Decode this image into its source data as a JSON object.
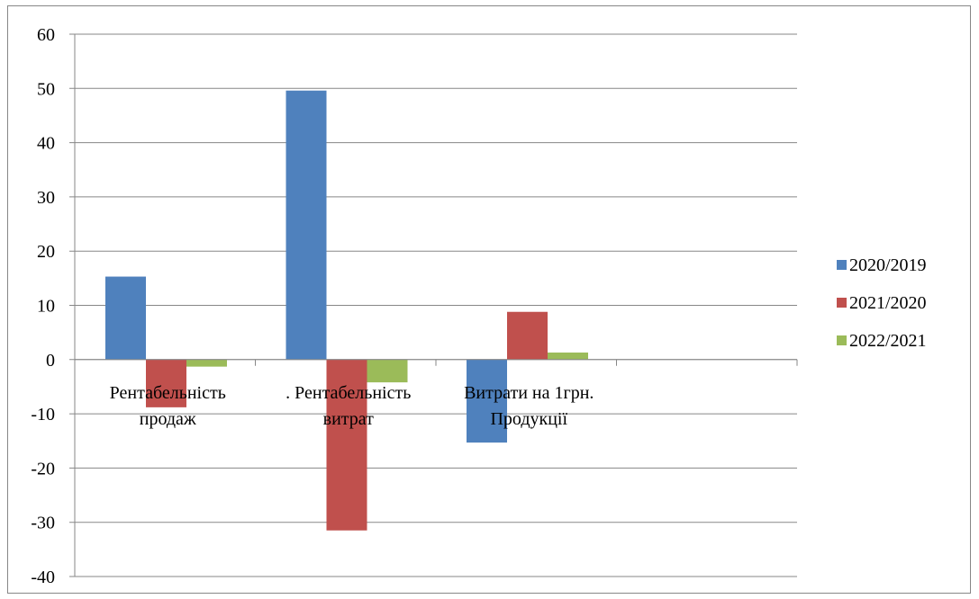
{
  "chart_data": {
    "type": "bar",
    "categories": [
      [
        "Рентабельність",
        "продаж"
      ],
      [
        ". Рентабельність",
        "витрат"
      ],
      [
        "Витрати на 1грн.",
        "Продукції"
      ]
    ],
    "series": [
      {
        "name": "2020/2019",
        "color": "#4f81bd",
        "values": [
          15.3,
          49.6,
          -15.3
        ]
      },
      {
        "name": "2021/2020",
        "color": "#c0504d",
        "values": [
          -8.8,
          -31.5,
          8.8
        ]
      },
      {
        "name": "2022/2021",
        "color": "#9bbb59",
        "values": [
          -1.3,
          -4.2,
          1.3
        ]
      }
    ],
    "ylim": [
      -40,
      60
    ],
    "yticks": [
      "60",
      "50",
      "40",
      "30",
      "20",
      "10",
      "0",
      "-10",
      "-20",
      "-30",
      "-40"
    ],
    "grid": true,
    "legend_position": "right",
    "title": "",
    "xlabel": "",
    "ylabel": ""
  }
}
